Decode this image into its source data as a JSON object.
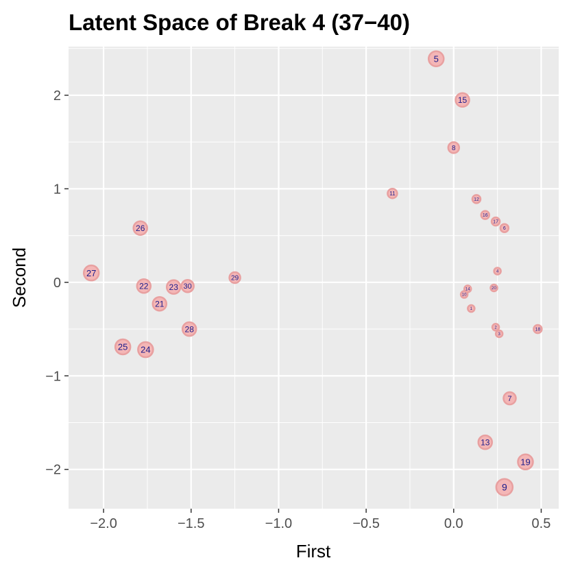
{
  "chart_data": {
    "type": "scatter",
    "title": "Latent Space of Break 4 (37−40)",
    "xlabel": "First",
    "ylabel": "Second",
    "xlim": [
      -2.2,
      0.6
    ],
    "ylim": [
      -2.42,
      2.52
    ],
    "x_ticks": [
      -2.0,
      -1.5,
      -1.0,
      -0.5,
      0.0,
      0.5
    ],
    "x_tick_labels": [
      "−2.0",
      "−1.5",
      "−1.0",
      "−0.5",
      "0.0",
      "0.5"
    ],
    "y_ticks": [
      -2,
      -1,
      0,
      1,
      2
    ],
    "y_tick_labels": [
      "−2",
      "−1",
      "0",
      "1",
      "2"
    ],
    "grid": true,
    "legend": "none",
    "colors": {
      "panel": "#ebebeb",
      "grid": "#ffffff",
      "point_fill": "#f4b6b6",
      "point_stroke": "#e8a0a0",
      "label": "#1a1a8a"
    },
    "points": [
      {
        "label": "5",
        "x": -0.1,
        "y": 2.39,
        "size": 11
      },
      {
        "label": "15",
        "x": 0.05,
        "y": 1.95,
        "size": 10
      },
      {
        "label": "8",
        "x": 0.0,
        "y": 1.44,
        "size": 8
      },
      {
        "label": "11",
        "x": -0.35,
        "y": 0.95,
        "size": 7
      },
      {
        "label": "12",
        "x": 0.13,
        "y": 0.89,
        "size": 6
      },
      {
        "label": "16",
        "x": 0.18,
        "y": 0.72,
        "size": 6
      },
      {
        "label": "17",
        "x": 0.24,
        "y": 0.65,
        "size": 6
      },
      {
        "label": "6",
        "x": 0.29,
        "y": 0.58,
        "size": 6
      },
      {
        "label": "26",
        "x": -1.79,
        "y": 0.58,
        "size": 10
      },
      {
        "label": "27",
        "x": -2.07,
        "y": 0.1,
        "size": 11
      },
      {
        "label": "29",
        "x": -1.25,
        "y": 0.05,
        "size": 8
      },
      {
        "label": "22",
        "x": -1.77,
        "y": -0.04,
        "size": 10
      },
      {
        "label": "23",
        "x": -1.6,
        "y": -0.05,
        "size": 10
      },
      {
        "label": "30",
        "x": -1.52,
        "y": -0.04,
        "size": 9
      },
      {
        "label": "21",
        "x": -1.68,
        "y": -0.23,
        "size": 10
      },
      {
        "label": "28",
        "x": -1.51,
        "y": -0.5,
        "size": 10
      },
      {
        "label": "25",
        "x": -1.89,
        "y": -0.69,
        "size": 11
      },
      {
        "label": "24",
        "x": -1.76,
        "y": -0.72,
        "size": 11
      },
      {
        "label": "4",
        "x": 0.25,
        "y": 0.12,
        "size": 5
      },
      {
        "label": "14",
        "x": 0.08,
        "y": -0.07,
        "size": 5
      },
      {
        "label": "10",
        "x": 0.06,
        "y": -0.13,
        "size": 5
      },
      {
        "label": "20",
        "x": 0.23,
        "y": -0.06,
        "size": 5
      },
      {
        "label": "1",
        "x": 0.1,
        "y": -0.28,
        "size": 5
      },
      {
        "label": "2",
        "x": 0.24,
        "y": -0.48,
        "size": 5
      },
      {
        "label": "3",
        "x": 0.26,
        "y": -0.55,
        "size": 5
      },
      {
        "label": "18",
        "x": 0.48,
        "y": -0.5,
        "size": 6
      },
      {
        "label": "7",
        "x": 0.32,
        "y": -1.24,
        "size": 9
      },
      {
        "label": "13",
        "x": 0.18,
        "y": -1.71,
        "size": 10
      },
      {
        "label": "19",
        "x": 0.41,
        "y": -1.92,
        "size": 11
      },
      {
        "label": "9",
        "x": 0.29,
        "y": -2.19,
        "size": 12
      }
    ]
  }
}
